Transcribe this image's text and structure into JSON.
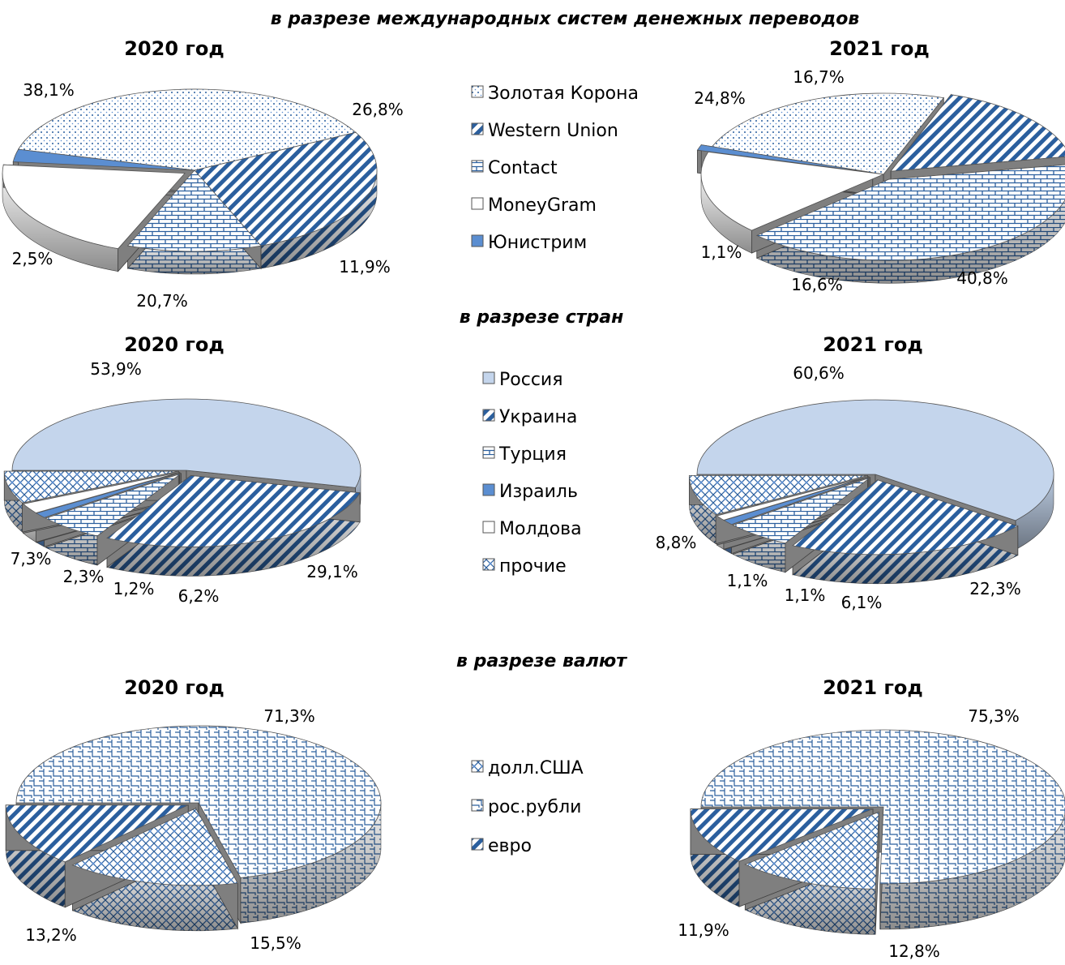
{
  "colors": {
    "dark_blue": "#2b5f9e",
    "light_blue": "#c4d5ec",
    "mid_blue": "#5b8ed1",
    "side_gray": "#7f7f7f",
    "separator": "#404040",
    "background": "#ffffff"
  },
  "chart_data": [
    {
      "type": "pie",
      "section_title": "в разрезе международных систем денежных переводов",
      "title": "2020 год",
      "categories": [
        "Золотая Корона",
        "Western Union",
        "Contact",
        "MoneyGram",
        "Юнистрим"
      ],
      "values": [
        38.1,
        26.8,
        11.9,
        20.7,
        2.5
      ],
      "labels": [
        "38,1%",
        "26,8%",
        "11,9%",
        "20,7%",
        "2,5%"
      ],
      "patterns": [
        "dots",
        "diag",
        "brick",
        "white",
        "solid"
      ]
    },
    {
      "type": "pie",
      "title": "2021 год",
      "categories": [
        "Золотая Корона",
        "Western Union",
        "Contact",
        "MoneyGram",
        "Юнистрим"
      ],
      "values": [
        24.8,
        16.7,
        40.8,
        16.6,
        1.1
      ],
      "labels": [
        "24,8%",
        "16,7%",
        "40,8%",
        "16,6%",
        "1,1%"
      ],
      "patterns": [
        "dots",
        "diag",
        "brick",
        "white",
        "solid"
      ]
    },
    {
      "type": "pie",
      "section_title": "в разрезе стран",
      "title": "2020 год",
      "categories": [
        "Россия",
        "Украина",
        "Турция",
        "Израиль",
        "Молдова",
        "прочие"
      ],
      "values": [
        53.9,
        29.1,
        6.2,
        1.2,
        2.3,
        7.3
      ],
      "labels": [
        "53,9%",
        "29,1%",
        "6,2%",
        "1,2%",
        "2,3%",
        "7,3%"
      ],
      "patterns": [
        "light",
        "diag",
        "brick",
        "solid",
        "white",
        "check"
      ]
    },
    {
      "type": "pie",
      "title": "2021 год",
      "categories": [
        "Россия",
        "Украина",
        "Турция",
        "Израиль",
        "Молдова",
        "прочие"
      ],
      "values": [
        60.6,
        22.3,
        6.1,
        1.1,
        1.1,
        8.8
      ],
      "labels": [
        "60,6%",
        "22,3%",
        "6,1%",
        "1,1%",
        "1,1%",
        "8,8%"
      ],
      "patterns": [
        "light",
        "diag",
        "brick",
        "solid",
        "white",
        "check"
      ]
    },
    {
      "type": "pie",
      "section_title": "в разрезе валют",
      "title": "2020 год",
      "categories": [
        "рос.рубли",
        "долл.США",
        "евро"
      ],
      "values": [
        71.3,
        15.5,
        13.2
      ],
      "labels": [
        "71,3%",
        "15,5%",
        "13,2%"
      ],
      "patterns": [
        "weave",
        "check",
        "diag"
      ]
    },
    {
      "type": "pie",
      "title": "2021 год",
      "categories": [
        "рос.рубли",
        "долл.США",
        "евро"
      ],
      "values": [
        75.3,
        12.8,
        11.9
      ],
      "labels": [
        "75,3%",
        "12,8%",
        "11,9%"
      ],
      "patterns": [
        "weave",
        "check",
        "diag"
      ]
    }
  ],
  "legends": [
    {
      "items": [
        {
          "label": "Золотая Корона",
          "pattern": "dots"
        },
        {
          "label": "Western Union",
          "pattern": "diag"
        },
        {
          "label": "Contact",
          "pattern": "brick"
        },
        {
          "label": "MoneyGram",
          "pattern": "white"
        },
        {
          "label": "Юнистрим",
          "pattern": "solid"
        }
      ]
    },
    {
      "items": [
        {
          "label": "Россия",
          "pattern": "light"
        },
        {
          "label": "Украина",
          "pattern": "diag"
        },
        {
          "label": "Турция",
          "pattern": "brick"
        },
        {
          "label": "Израиль",
          "pattern": "solid"
        },
        {
          "label": "Молдова",
          "pattern": "white"
        },
        {
          "label": "прочие",
          "pattern": "check"
        }
      ]
    },
    {
      "items": [
        {
          "label": "долл.США",
          "pattern": "check"
        },
        {
          "label": "рос.рубли",
          "pattern": "weave"
        },
        {
          "label": "евро",
          "pattern": "diag"
        }
      ]
    }
  ]
}
